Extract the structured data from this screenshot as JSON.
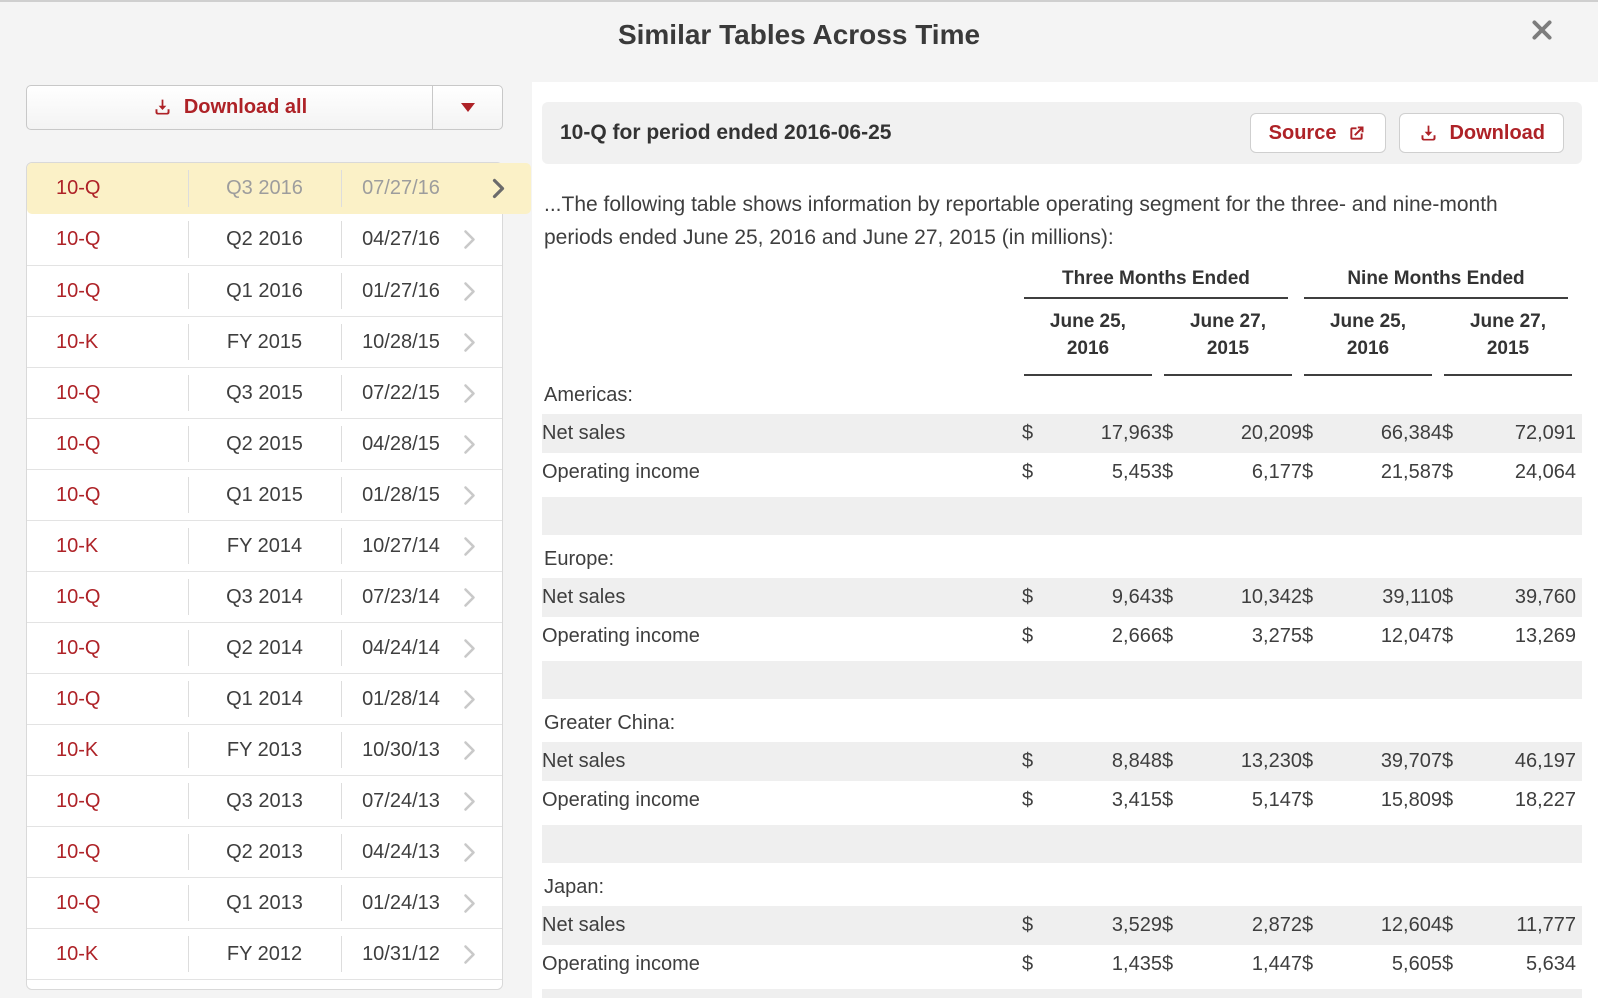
{
  "modal": {
    "title": "Similar Tables Across Time"
  },
  "sidebar": {
    "download_all_label": "Download all",
    "filings": [
      {
        "type": "10-Q",
        "period": "Q3 2016",
        "date": "07/27/16",
        "selected": true
      },
      {
        "type": "10-Q",
        "period": "Q2 2016",
        "date": "04/27/16",
        "selected": false
      },
      {
        "type": "10-Q",
        "period": "Q1 2016",
        "date": "01/27/16",
        "selected": false
      },
      {
        "type": "10-K",
        "period": "FY 2015",
        "date": "10/28/15",
        "selected": false
      },
      {
        "type": "10-Q",
        "period": "Q3 2015",
        "date": "07/22/15",
        "selected": false
      },
      {
        "type": "10-Q",
        "period": "Q2 2015",
        "date": "04/28/15",
        "selected": false
      },
      {
        "type": "10-Q",
        "period": "Q1 2015",
        "date": "01/28/15",
        "selected": false
      },
      {
        "type": "10-K",
        "period": "FY 2014",
        "date": "10/27/14",
        "selected": false
      },
      {
        "type": "10-Q",
        "period": "Q3 2014",
        "date": "07/23/14",
        "selected": false
      },
      {
        "type": "10-Q",
        "period": "Q2 2014",
        "date": "04/24/14",
        "selected": false
      },
      {
        "type": "10-Q",
        "period": "Q1 2014",
        "date": "01/28/14",
        "selected": false
      },
      {
        "type": "10-K",
        "period": "FY 2013",
        "date": "10/30/13",
        "selected": false
      },
      {
        "type": "10-Q",
        "period": "Q3 2013",
        "date": "07/24/13",
        "selected": false
      },
      {
        "type": "10-Q",
        "period": "Q2 2013",
        "date": "04/24/13",
        "selected": false
      },
      {
        "type": "10-Q",
        "period": "Q1 2013",
        "date": "01/24/13",
        "selected": false
      },
      {
        "type": "10-K",
        "period": "FY 2012",
        "date": "10/31/12",
        "selected": false
      }
    ]
  },
  "panel": {
    "header": "10-Q for period ended 2016-06-25",
    "source_label": "Source",
    "download_label": "Download",
    "intro": "...The following table shows information by reportable operating segment for the three- and nine-month periods ended June 25, 2016 and June 27, 2015 (in millions):",
    "table": {
      "type": "table",
      "column_groups": [
        "Three Months Ended",
        "Nine Months Ended"
      ],
      "columns": [
        "June 25,\n2016",
        "June 27,\n2015",
        "June 25,\n2016",
        "June 27,\n2015"
      ],
      "currency_symbol": "$",
      "sections": [
        {
          "label": "Americas:",
          "rows": [
            {
              "label": "Net sales",
              "values": [
                "17,963",
                "20,209",
                "66,384",
                "72,091"
              ]
            },
            {
              "label": "Operating income",
              "values": [
                "5,453",
                "6,177",
                "21,587",
                "24,064"
              ]
            }
          ]
        },
        {
          "label": "Europe:",
          "rows": [
            {
              "label": "Net sales",
              "values": [
                "9,643",
                "10,342",
                "39,110",
                "39,760"
              ]
            },
            {
              "label": "Operating income",
              "values": [
                "2,666",
                "3,275",
                "12,047",
                "13,269"
              ]
            }
          ]
        },
        {
          "label": "Greater China:",
          "rows": [
            {
              "label": "Net sales",
              "values": [
                "8,848",
                "13,230",
                "39,707",
                "46,197"
              ]
            },
            {
              "label": "Operating income",
              "values": [
                "3,415",
                "5,147",
                "15,809",
                "18,227"
              ]
            }
          ]
        },
        {
          "label": "Japan:",
          "rows": [
            {
              "label": "Net sales",
              "values": [
                "3,529",
                "2,872",
                "12,604",
                "11,777"
              ]
            },
            {
              "label": "Operating income",
              "values": [
                "1,435",
                "1,447",
                "5,605",
                "5,634"
              ]
            }
          ]
        }
      ]
    }
  },
  "colors": {
    "accent_red": "#ae2227",
    "selected_row": "#fbf1c7",
    "row_gray": "#efefef",
    "page_bg": "#f4f4f4"
  }
}
